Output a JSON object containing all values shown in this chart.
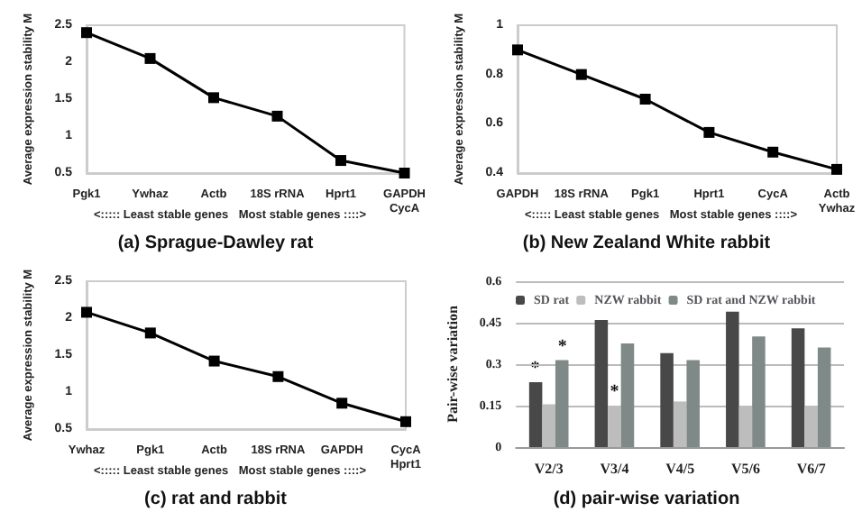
{
  "chart_data": [
    {
      "type": "line",
      "title": "(a) Sprague-Dawley rat",
      "ylabel": "Average expression stability M",
      "categories": [
        "Pgk1",
        "Ywhaz",
        "Actb",
        "18S rRNA",
        "Hprt1",
        "GAPDH\nCycA"
      ],
      "series": [
        {
          "color": "#000000",
          "values": [
            2.4,
            2.05,
            1.52,
            1.27,
            0.67,
            0.5
          ]
        }
      ],
      "ylim": [
        0.5,
        2.5
      ],
      "yticks": [
        0.5,
        1,
        1.5,
        2,
        2.5
      ],
      "grid": false,
      "legend": false,
      "marker": "square",
      "line_style": "solid",
      "annotations": [
        "<::::: Least stable genes",
        "Most stable genes ::::>"
      ]
    },
    {
      "type": "line",
      "title": "(b) New Zealand White rabbit",
      "ylabel": "Average expression stability M",
      "categories": [
        "GAPDH",
        "18S rRNA",
        "Pgk1",
        "Hprt1",
        "CycA",
        "Actb\nYwhaz"
      ],
      "series": [
        {
          "color": "#000000",
          "values": [
            0.9,
            0.8,
            0.7,
            0.565,
            0.485,
            0.415
          ]
        }
      ],
      "ylim": [
        0.4,
        1
      ],
      "yticks": [
        0.4,
        0.6,
        0.8,
        1
      ],
      "grid": false,
      "legend": false,
      "marker": "square",
      "line_style": "solid",
      "annotations": [
        "<::::: Least stable genes",
        "Most stable genes ::::>"
      ]
    },
    {
      "type": "line",
      "title": "(c) rat and rabbit",
      "ylabel": "Average expression stability M",
      "categories": [
        "Ywhaz",
        "Pgk1",
        "Actb",
        "18S rRNA",
        "GAPDH",
        "CycA\nHprt1"
      ],
      "series": [
        {
          "color": "#000000",
          "values": [
            2.08,
            1.8,
            1.42,
            1.21,
            0.85,
            0.6
          ]
        }
      ],
      "ylim": [
        0.5,
        2.5
      ],
      "yticks": [
        0.5,
        1,
        1.5,
        2,
        2.5
      ],
      "grid": false,
      "legend": false,
      "marker": "square",
      "line_style": "solid",
      "annotations": [
        "<::::: Least stable genes",
        "Most stable genes ::::>"
      ]
    },
    {
      "type": "bar",
      "title": "(d) pair-wise variation",
      "ylabel": "Pair-wise variation",
      "categories": [
        "V2/3",
        "V3/4",
        "V4/5",
        "V5/6",
        "V6/7"
      ],
      "series": [
        {
          "name": "SD rat",
          "color": "#484848",
          "values": [
            0.235,
            0.46,
            0.34,
            0.49,
            0.43
          ]
        },
        {
          "name": "NZW rabbit",
          "color": "#bdbdbd",
          "values": [
            0.155,
            0.15,
            0.165,
            0.15,
            0.15
          ]
        },
        {
          "name": "SD rat and NZW rabbit",
          "color": "#7f8987",
          "values": [
            0.315,
            0.375,
            0.315,
            0.4,
            0.36
          ]
        }
      ],
      "ylim": [
        0,
        0.6
      ],
      "yticks": [
        0,
        0.15,
        0.3,
        0.45,
        0.6
      ],
      "grid": "y",
      "legend": "top",
      "annotations": [
        {
          "text": "*",
          "x": "V2/3",
          "y": 0.25
        },
        {
          "text": "*",
          "x": "V2/3",
          "y": 0.33
        },
        {
          "text": "*",
          "x": "V3/4",
          "y": 0.165
        }
      ]
    }
  ]
}
